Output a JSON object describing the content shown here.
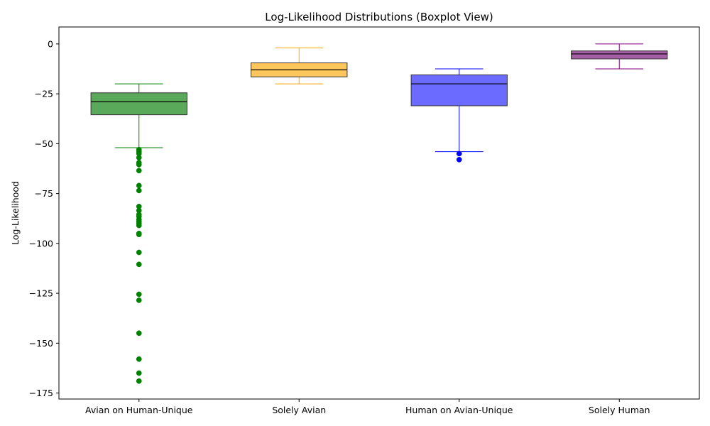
{
  "chart_data": {
    "type": "boxplot",
    "title": "Log-Likelihood Distributions (Boxplot View)",
    "xlabel": "",
    "ylabel": "Log-Likelihood",
    "ylim": [
      -178,
      8.5
    ],
    "yticks": [
      0,
      -25,
      -50,
      -75,
      -100,
      -125,
      -150,
      -175
    ],
    "ytick_labels": [
      "0",
      "−25",
      "−50",
      "−75",
      "−100",
      "−125",
      "−150",
      "−175"
    ],
    "grid": false,
    "categories": [
      "Avian on Human-Unique",
      "Solely Avian",
      "Human on Avian-Unique",
      "Solely Human"
    ],
    "series": [
      {
        "whisker_high": -20,
        "q3": -24.5,
        "median": -29,
        "q1": -35.5,
        "whisker_low": -52,
        "outliers": [
          -53,
          -54,
          -55,
          -57,
          -59.5,
          -60.5,
          -63.5,
          -71,
          -73.5,
          -81.5,
          -83.5,
          -85.5,
          -86.5,
          -88,
          -89,
          -90,
          -91,
          -95,
          -95.5,
          -104.5,
          -110.5,
          -125.5,
          -128.5,
          -145,
          -158,
          -165,
          -169
        ],
        "fill_color": "#5aa85a",
        "line_color": "#008000"
      },
      {
        "whisker_high": -2,
        "q3": -9.5,
        "median": -13,
        "q1": -16.5,
        "whisker_low": -20,
        "outliers": [],
        "fill_color": "#ffc65c",
        "line_color": "#ffa500"
      },
      {
        "whisker_high": -12.5,
        "q3": -15.5,
        "median": -20,
        "q1": -31,
        "whisker_low": -54,
        "outliers": [
          -55,
          -58
        ],
        "fill_color": "#6b6bff",
        "line_color": "#0000ff"
      },
      {
        "whisker_high": 0,
        "q3": -3.5,
        "median": -5,
        "q1": -7.5,
        "whisker_low": -12.5,
        "outliers": [],
        "fill_color": "#a65ea6",
        "line_color": "#800080"
      }
    ]
  }
}
